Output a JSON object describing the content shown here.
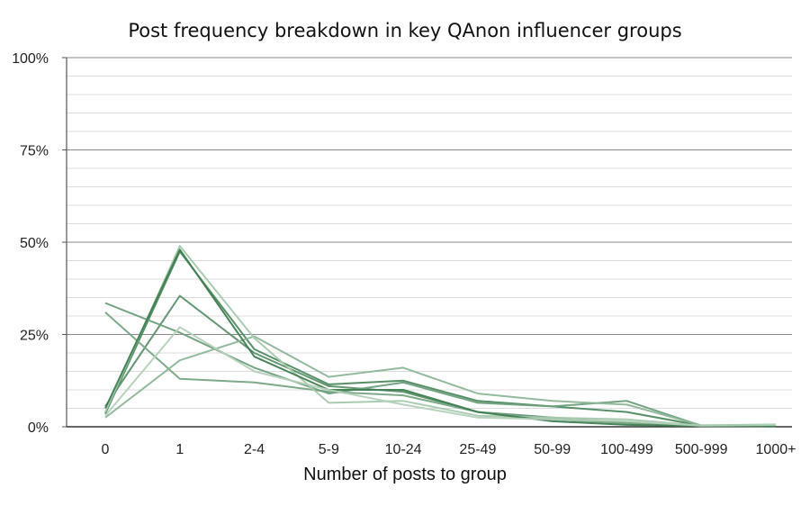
{
  "chart_data": {
    "type": "line",
    "title": "Post frequency breakdown in key QAnon influencer groups",
    "xlabel": "Number of posts to group",
    "ylabel": "",
    "categories": [
      "0",
      "1",
      "2-4",
      "5-9",
      "10-24",
      "25-49",
      "50-99",
      "100-499",
      "500-999",
      "1000+"
    ],
    "ylim": [
      0,
      100
    ],
    "yticks": [
      {
        "value": 0,
        "label": "0%"
      },
      {
        "value": 25,
        "label": "25%"
      },
      {
        "value": 50,
        "label": "50%"
      },
      {
        "value": 75,
        "label": "75%"
      },
      {
        "value": 100,
        "label": "100%"
      }
    ],
    "minor_gridlines_every": 5,
    "legend": "none",
    "series": [
      {
        "values": [
          3.5,
          47.5,
          21,
          11.5,
          12.5,
          7,
          5.5,
          4,
          0.3,
          0.2
        ],
        "color": "#4e8a5e"
      },
      {
        "values": [
          5.5,
          35.5,
          20,
          11,
          9.5,
          4,
          2.5,
          1,
          0.2,
          0.1
        ],
        "color": "#5b8f69"
      },
      {
        "values": [
          31,
          13,
          12,
          9.5,
          8.5,
          4,
          2,
          1,
          0.2,
          0.1
        ],
        "color": "#76a583"
      },
      {
        "values": [
          33.5,
          25.5,
          16,
          9,
          12,
          6.5,
          5.5,
          7,
          0.3,
          0.2
        ],
        "color": "#6e9f7b"
      },
      {
        "values": [
          2.5,
          18,
          24.5,
          13.5,
          16,
          9,
          7,
          6,
          0.4,
          0.6
        ],
        "color": "#8db699"
      },
      {
        "values": [
          4,
          49,
          24,
          6.5,
          7,
          3,
          2.5,
          2,
          0.3,
          0.4
        ],
        "color": "#a6c8ad"
      },
      {
        "values": [
          5,
          48,
          19,
          10,
          10,
          4,
          1.5,
          0.5,
          0.2,
          0.2
        ],
        "color": "#3f7d51"
      },
      {
        "values": [
          3,
          27,
          15,
          10,
          6,
          2.5,
          2,
          1.5,
          0.3,
          0.5
        ],
        "color": "#b3d0b9"
      }
    ]
  }
}
